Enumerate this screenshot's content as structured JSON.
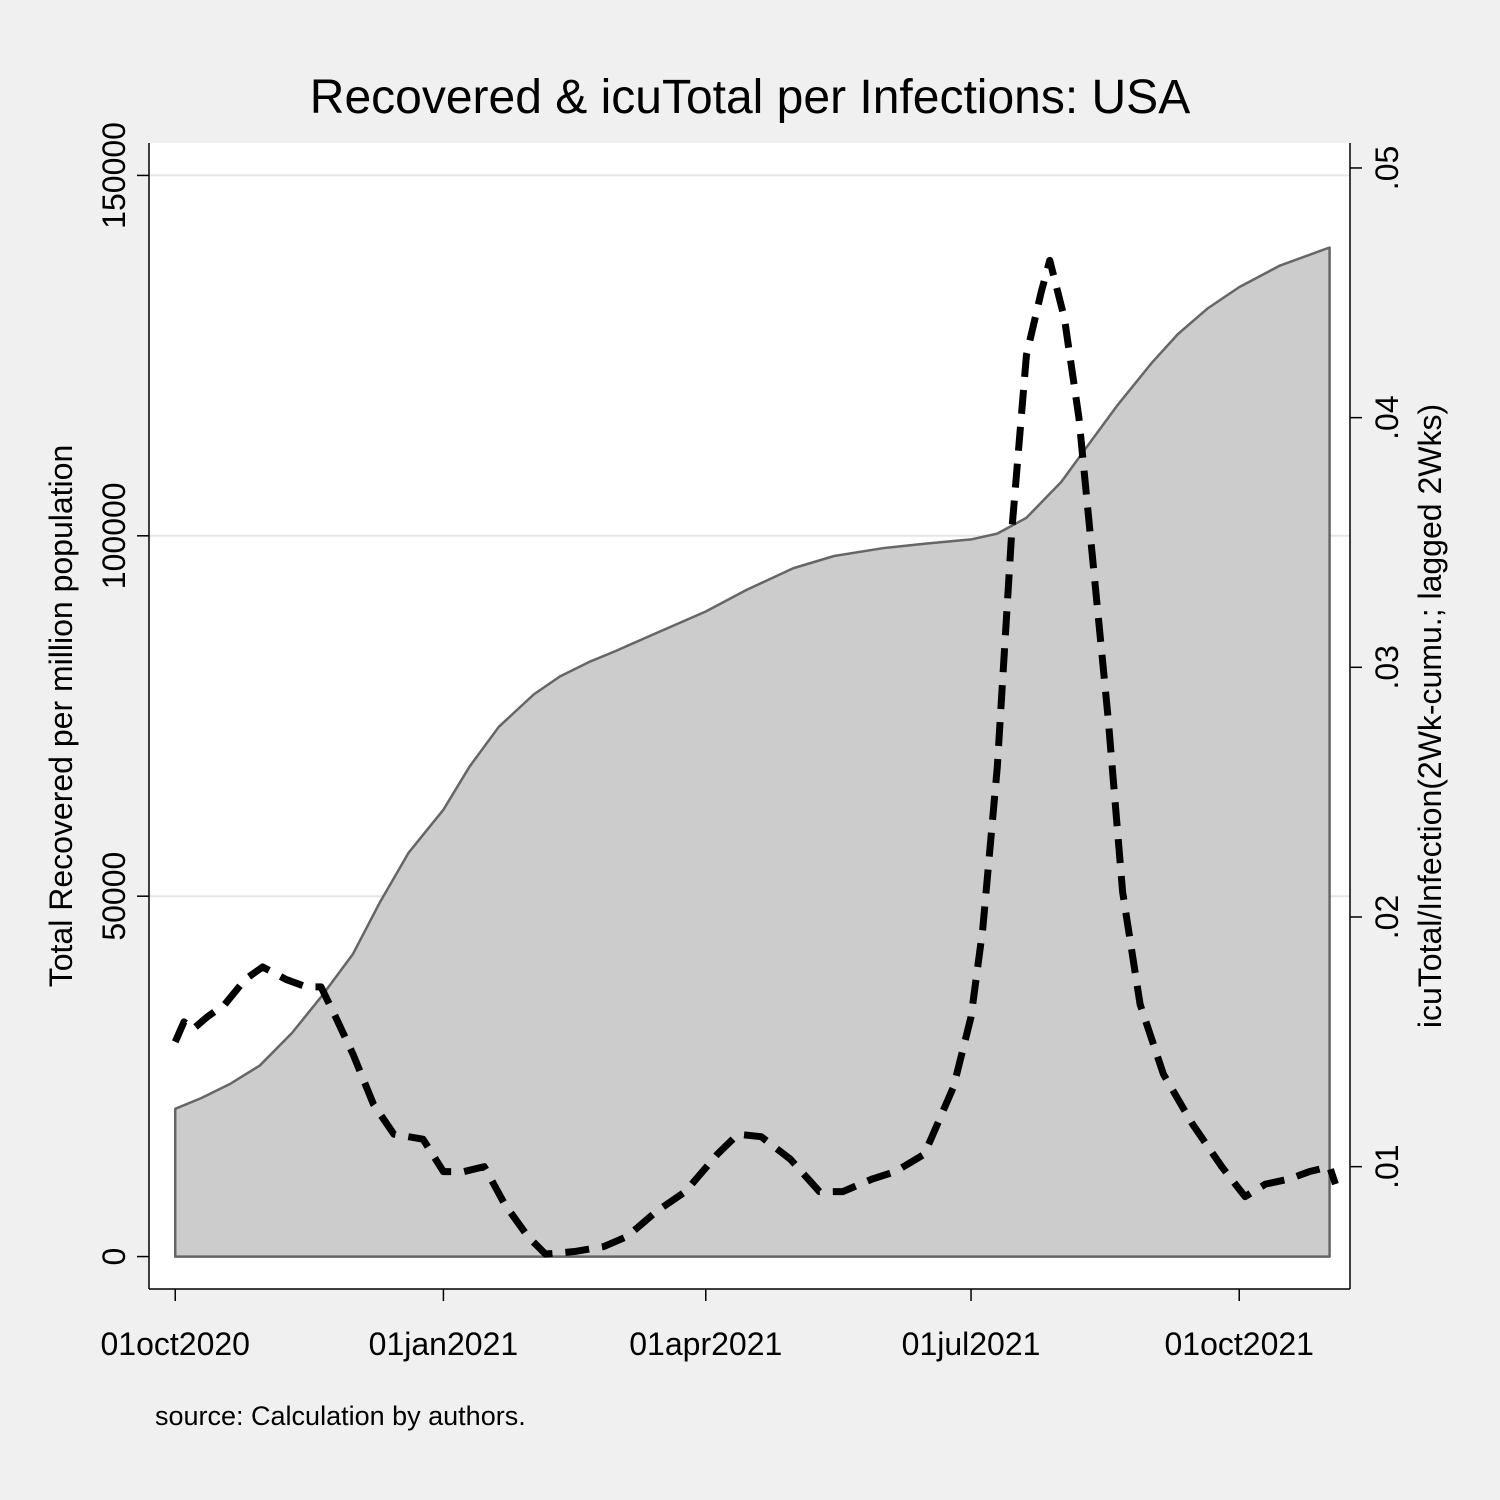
{
  "chart_data": {
    "type": "area",
    "title": "Recovered & icuTotal per Infections: USA",
    "note": "source: Calculation by authors.",
    "x_axis": {
      "ticks": [
        {
          "date": "2020-10-01",
          "label": "01oct2020"
        },
        {
          "date": "2021-01-01",
          "label": "01jan2021"
        },
        {
          "date": "2021-04-01",
          "label": "01apr2021"
        },
        {
          "date": "2021-07-01",
          "label": "01jul2021"
        },
        {
          "date": "2021-10-01",
          "label": "01oct2021"
        }
      ],
      "range": [
        "2020-09-22",
        "2021-11-08"
      ]
    },
    "y_left": {
      "label": "Total Recovered per million population",
      "range": [
        -4500,
        154500
      ],
      "ticks": [
        {
          "value": 0,
          "label": "0"
        },
        {
          "value": 50000,
          "label": "50000"
        },
        {
          "value": 100000,
          "label": "100000"
        },
        {
          "value": 150000,
          "label": "150000"
        }
      ],
      "grid": true
    },
    "y_right": {
      "label": "icuTotal/Infection(2Wk-cumu.; lagged 2Wks)",
      "range": [
        0.0051,
        0.051
      ],
      "ticks": [
        {
          "value": 0.01,
          "label": ".01"
        },
        {
          "value": 0.02,
          "label": ".02"
        },
        {
          "value": 0.03,
          "label": ".03"
        },
        {
          "value": 0.04,
          "label": ".04"
        },
        {
          "value": 0.05,
          "label": ".05"
        }
      ]
    },
    "series": [
      {
        "axis": "left",
        "style": "area",
        "color": "#cccccc",
        "line_color": "#666666",
        "points": [
          [
            "2020-10-01",
            20500
          ],
          [
            "2020-10-10",
            22000
          ],
          [
            "2020-10-20",
            24000
          ],
          [
            "2020-10-30",
            26500
          ],
          [
            "2020-11-10",
            31000
          ],
          [
            "2020-11-20",
            36000
          ],
          [
            "2020-12-01",
            42000
          ],
          [
            "2020-12-10",
            49000
          ],
          [
            "2020-12-20",
            56000
          ],
          [
            "2021-01-01",
            62000
          ],
          [
            "2021-01-10",
            68000
          ],
          [
            "2021-01-20",
            73500
          ],
          [
            "2021-02-01",
            78000
          ],
          [
            "2021-02-10",
            80500
          ],
          [
            "2021-02-20",
            82500
          ],
          [
            "2021-03-01",
            84000
          ],
          [
            "2021-03-15",
            86500
          ],
          [
            "2021-04-01",
            89500
          ],
          [
            "2021-04-15",
            92500
          ],
          [
            "2021-05-01",
            95500
          ],
          [
            "2021-05-15",
            97200
          ],
          [
            "2021-06-01",
            98300
          ],
          [
            "2021-06-15",
            98900
          ],
          [
            "2021-07-01",
            99500
          ],
          [
            "2021-07-10",
            100300
          ],
          [
            "2021-07-20",
            102500
          ],
          [
            "2021-08-01",
            107500
          ],
          [
            "2021-08-10",
            112500
          ],
          [
            "2021-08-20",
            118000
          ],
          [
            "2021-09-01",
            124000
          ],
          [
            "2021-09-10",
            128000
          ],
          [
            "2021-09-20",
            131500
          ],
          [
            "2021-10-01",
            134500
          ],
          [
            "2021-10-15",
            137500
          ],
          [
            "2021-11-01",
            140000
          ]
        ]
      },
      {
        "axis": "right",
        "style": "dash",
        "color": "#000000",
        "points": [
          [
            "2020-10-01",
            0.015
          ],
          [
            "2020-10-04",
            0.0158
          ],
          [
            "2020-10-07",
            0.0155
          ],
          [
            "2020-10-12",
            0.016
          ],
          [
            "2020-10-18",
            0.0165
          ],
          [
            "2020-10-25",
            0.0175
          ],
          [
            "2020-10-31",
            0.018
          ],
          [
            "2020-11-08",
            0.0175
          ],
          [
            "2020-11-15",
            0.0172
          ],
          [
            "2020-11-20",
            0.0172
          ],
          [
            "2020-11-25",
            0.016
          ],
          [
            "2020-12-01",
            0.0145
          ],
          [
            "2020-12-08",
            0.0125
          ],
          [
            "2020-12-15",
            0.0113
          ],
          [
            "2020-12-25",
            0.0111
          ],
          [
            "2021-01-01",
            0.0098
          ],
          [
            "2021-01-08",
            0.0098
          ],
          [
            "2021-01-15",
            0.01
          ],
          [
            "2021-01-22",
            0.0085
          ],
          [
            "2021-01-30",
            0.0072
          ],
          [
            "2021-02-05",
            0.0065
          ],
          [
            "2021-02-15",
            0.0066
          ],
          [
            "2021-02-25",
            0.0068
          ],
          [
            "2021-03-05",
            0.0072
          ],
          [
            "2021-03-15",
            0.0082
          ],
          [
            "2021-03-25",
            0.009
          ],
          [
            "2021-04-05",
            0.0105
          ],
          [
            "2021-04-12",
            0.0113
          ],
          [
            "2021-04-20",
            0.0112
          ],
          [
            "2021-04-30",
            0.0103
          ],
          [
            "2021-05-10",
            0.009
          ],
          [
            "2021-05-18",
            0.009
          ],
          [
            "2021-05-28",
            0.0095
          ],
          [
            "2021-06-05",
            0.0098
          ],
          [
            "2021-06-15",
            0.0105
          ],
          [
            "2021-06-25",
            0.0132
          ],
          [
            "2021-07-01",
            0.016
          ],
          [
            "2021-07-05",
            0.0195
          ],
          [
            "2021-07-10",
            0.026
          ],
          [
            "2021-07-15",
            0.0355
          ],
          [
            "2021-07-20",
            0.0425
          ],
          [
            "2021-07-25",
            0.045
          ],
          [
            "2021-07-28",
            0.0463
          ],
          [
            "2021-08-02",
            0.044
          ],
          [
            "2021-08-07",
            0.04
          ],
          [
            "2021-08-12",
            0.034
          ],
          [
            "2021-08-17",
            0.028
          ],
          [
            "2021-08-22",
            0.021
          ],
          [
            "2021-08-28",
            0.0165
          ],
          [
            "2021-09-05",
            0.0137
          ],
          [
            "2021-09-15",
            0.0117
          ],
          [
            "2021-09-25",
            0.01
          ],
          [
            "2021-10-03",
            0.0088
          ],
          [
            "2021-10-10",
            0.0093
          ],
          [
            "2021-10-18",
            0.0095
          ],
          [
            "2021-10-25",
            0.0098
          ],
          [
            "2021-11-01",
            0.01
          ],
          [
            "2021-11-03",
            0.0093
          ]
        ]
      }
    ]
  }
}
